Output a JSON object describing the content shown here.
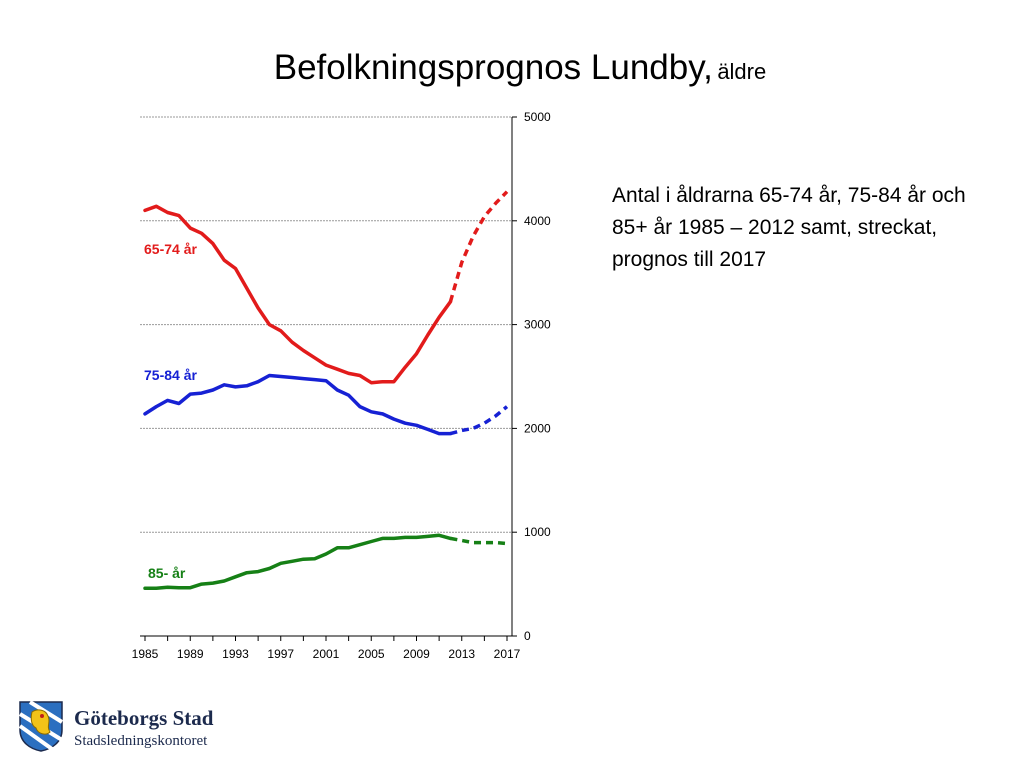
{
  "title": {
    "main": "Befolkningsprognos Lundby,",
    "sub": "äldre"
  },
  "description": "Antal i åldrarna 65-74 år, 75-84 år och 85+ år 1985 – 2012 samt, streckat, prognos till 2017",
  "logo": {
    "name": "Göteborgs Stad",
    "department": "Stadsledningskontoret"
  },
  "colors": {
    "red": "#e21b1b",
    "blue": "#1621d4",
    "green": "#168016",
    "grid": "#999999"
  },
  "chart_data": {
    "type": "line",
    "title": "Befolkningsprognos Lundby, äldre",
    "xlabel": "",
    "ylabel": "",
    "xlim": [
      1985,
      2017
    ],
    "ylim": [
      0,
      5000
    ],
    "yticks": [
      0,
      1000,
      2000,
      3000,
      4000,
      5000
    ],
    "xticks": [
      "1985",
      "1989",
      "1993",
      "1997",
      "2001",
      "2005",
      "2009",
      "2013",
      "2017"
    ],
    "grid": true,
    "y_axis_side": "right",
    "forecast_from": 2012,
    "series": [
      {
        "name": "65-74 år",
        "color": "#e21b1b",
        "x": [
          1985,
          1986,
          1987,
          1988,
          1989,
          1990,
          1991,
          1992,
          1993,
          1994,
          1995,
          1996,
          1997,
          1998,
          1999,
          2000,
          2001,
          2002,
          2003,
          2004,
          2005,
          2006,
          2007,
          2008,
          2009,
          2010,
          2011,
          2012,
          2013,
          2014,
          2015,
          2016,
          2017
        ],
        "values": [
          4100,
          4140,
          4080,
          4050,
          3930,
          3880,
          3780,
          3620,
          3540,
          3350,
          3160,
          3000,
          2940,
          2830,
          2750,
          2680,
          2610,
          2570,
          2530,
          2510,
          2440,
          2450,
          2450,
          2590,
          2720,
          2900,
          3070,
          3220,
          3600,
          3850,
          4040,
          4170,
          4280
        ]
      },
      {
        "name": "75-84 år",
        "color": "#1621d4",
        "x": [
          1985,
          1986,
          1987,
          1988,
          1989,
          1990,
          1991,
          1992,
          1993,
          1994,
          1995,
          1996,
          1997,
          1998,
          1999,
          2000,
          2001,
          2002,
          2003,
          2004,
          2005,
          2006,
          2007,
          2008,
          2009,
          2010,
          2011,
          2012,
          2013,
          2014,
          2015,
          2016,
          2017
        ],
        "values": [
          2140,
          2210,
          2270,
          2240,
          2330,
          2340,
          2370,
          2420,
          2400,
          2410,
          2450,
          2510,
          2500,
          2490,
          2480,
          2470,
          2460,
          2370,
          2320,
          2210,
          2160,
          2140,
          2090,
          2050,
          2030,
          1990,
          1950,
          1950,
          1980,
          2000,
          2050,
          2120,
          2210
        ]
      },
      {
        "name": "85- år",
        "color": "#168016",
        "x": [
          1985,
          1986,
          1987,
          1988,
          1989,
          1990,
          1991,
          1992,
          1993,
          1994,
          1995,
          1996,
          1997,
          1998,
          1999,
          2000,
          2001,
          2002,
          2003,
          2004,
          2005,
          2006,
          2007,
          2008,
          2009,
          2010,
          2011,
          2012,
          2013,
          2014,
          2015,
          2016,
          2017
        ],
        "values": [
          460,
          460,
          470,
          465,
          465,
          500,
          510,
          530,
          570,
          610,
          620,
          650,
          700,
          720,
          740,
          745,
          790,
          850,
          850,
          880,
          910,
          940,
          940,
          950,
          950,
          960,
          970,
          940,
          920,
          900,
          900,
          900,
          890
        ]
      }
    ]
  }
}
